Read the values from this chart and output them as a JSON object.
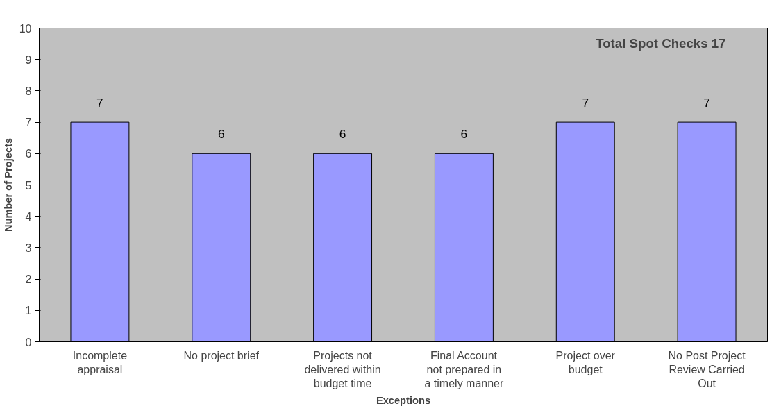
{
  "chart_data": {
    "type": "bar",
    "title": "Total Spot Checks 17",
    "xlabel": "Exceptions",
    "ylabel": "Number of Projects",
    "categories": [
      "Incomplete appraisal",
      "No project brief",
      "Projects not delivered within budget time",
      "Final Account not prepared in a timely manner",
      "Project over budget",
      "No Post Project Review Carried Out"
    ],
    "values": [
      7,
      6,
      6,
      6,
      7,
      7
    ],
    "color": "#9999ff",
    "data_labels": true,
    "ylim": [
      0,
      10
    ],
    "yticks": [
      0,
      1,
      2,
      3,
      4,
      5,
      6,
      7,
      8,
      9,
      10
    ],
    "grid": false
  }
}
